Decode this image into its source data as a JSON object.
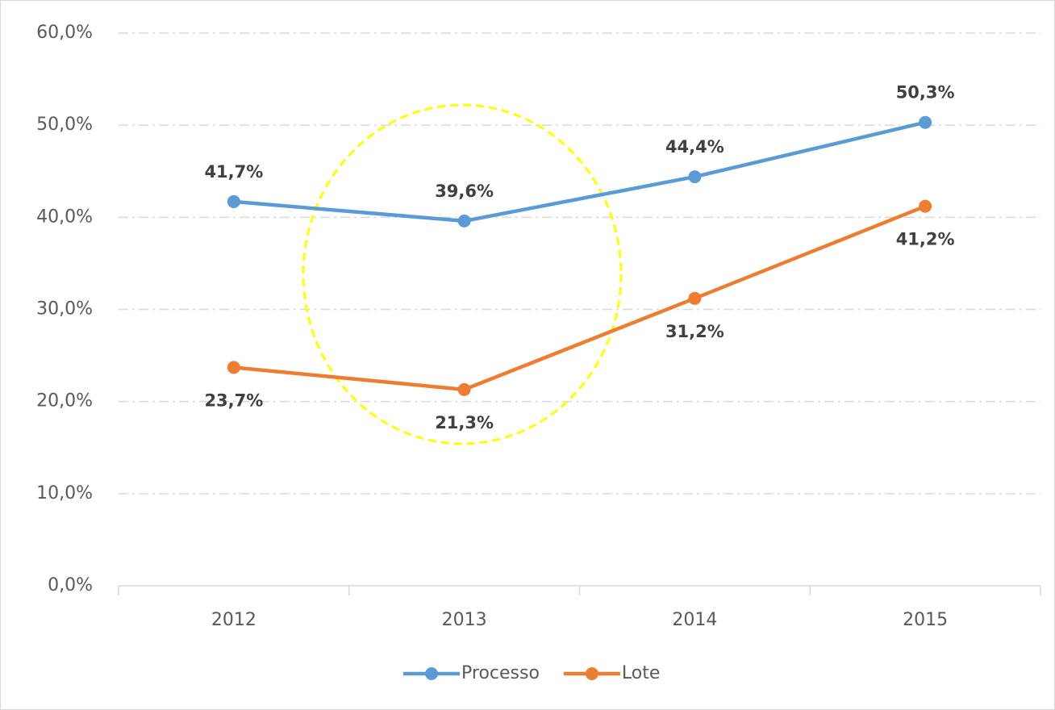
{
  "chart_data": {
    "type": "line",
    "categories": [
      "2012",
      "2013",
      "2014",
      "2015"
    ],
    "series": [
      {
        "name": "Processo",
        "color": "#5b9bd5",
        "values": [
          41.7,
          39.6,
          44.4,
          50.3
        ],
        "value_labels": [
          "41,7%",
          "39,6%",
          "44,4%",
          "50,3%"
        ]
      },
      {
        "name": "Lote",
        "color": "#ed7d31",
        "values": [
          23.7,
          21.3,
          31.2,
          41.2
        ],
        "value_labels": [
          "23,7%",
          "21,3%",
          "31,2%",
          "41,2%"
        ]
      }
    ],
    "ylim": [
      0,
      60
    ],
    "yticks": [
      {
        "value": 0,
        "label": "0,0%"
      },
      {
        "value": 10,
        "label": "10,0%"
      },
      {
        "value": 20,
        "label": "20,0%"
      },
      {
        "value": 30,
        "label": "30,0%"
      },
      {
        "value": 40,
        "label": "40,0%"
      },
      {
        "value": 50,
        "label": "50,0%"
      },
      {
        "value": 60,
        "label": "60,0%"
      }
    ],
    "grid": true,
    "legend": "bottom"
  }
}
